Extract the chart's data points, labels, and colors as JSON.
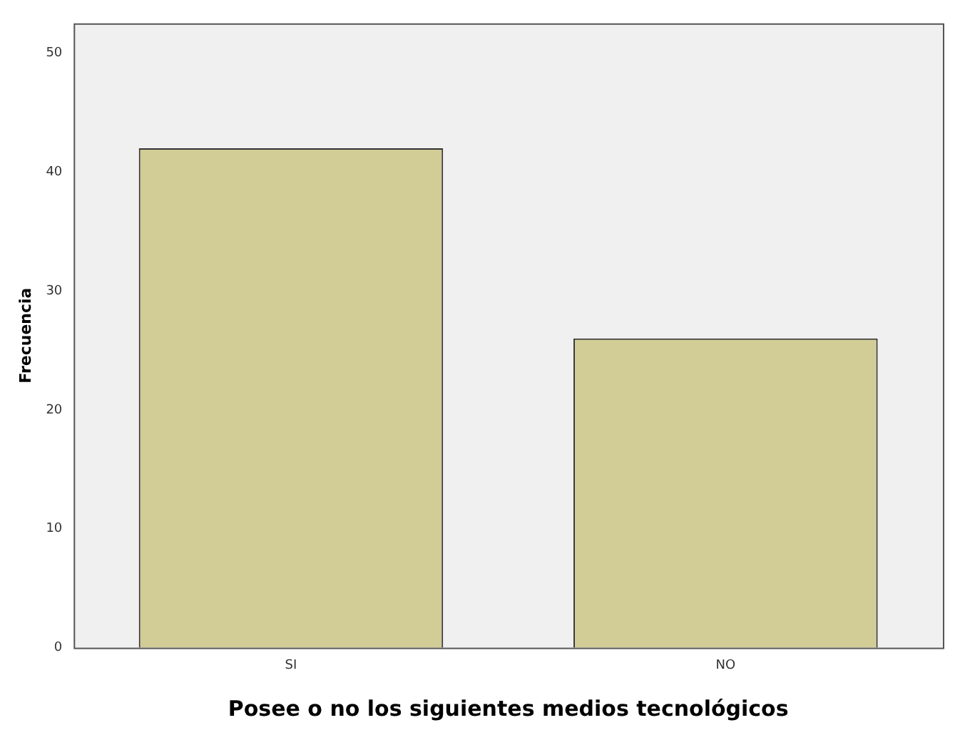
{
  "chart_data": {
    "type": "bar",
    "categories": [
      "SI",
      "NO"
    ],
    "values": [
      42,
      26
    ],
    "color": "#d2cc96",
    "xlabel": "Posee o no los siguientes medios tecnológicos",
    "ylabel": "Frecuencia",
    "ylim": [
      0,
      52.5
    ],
    "yticks": [
      0,
      10,
      20,
      30,
      40,
      50
    ],
    "grid": false,
    "legend": false
  }
}
